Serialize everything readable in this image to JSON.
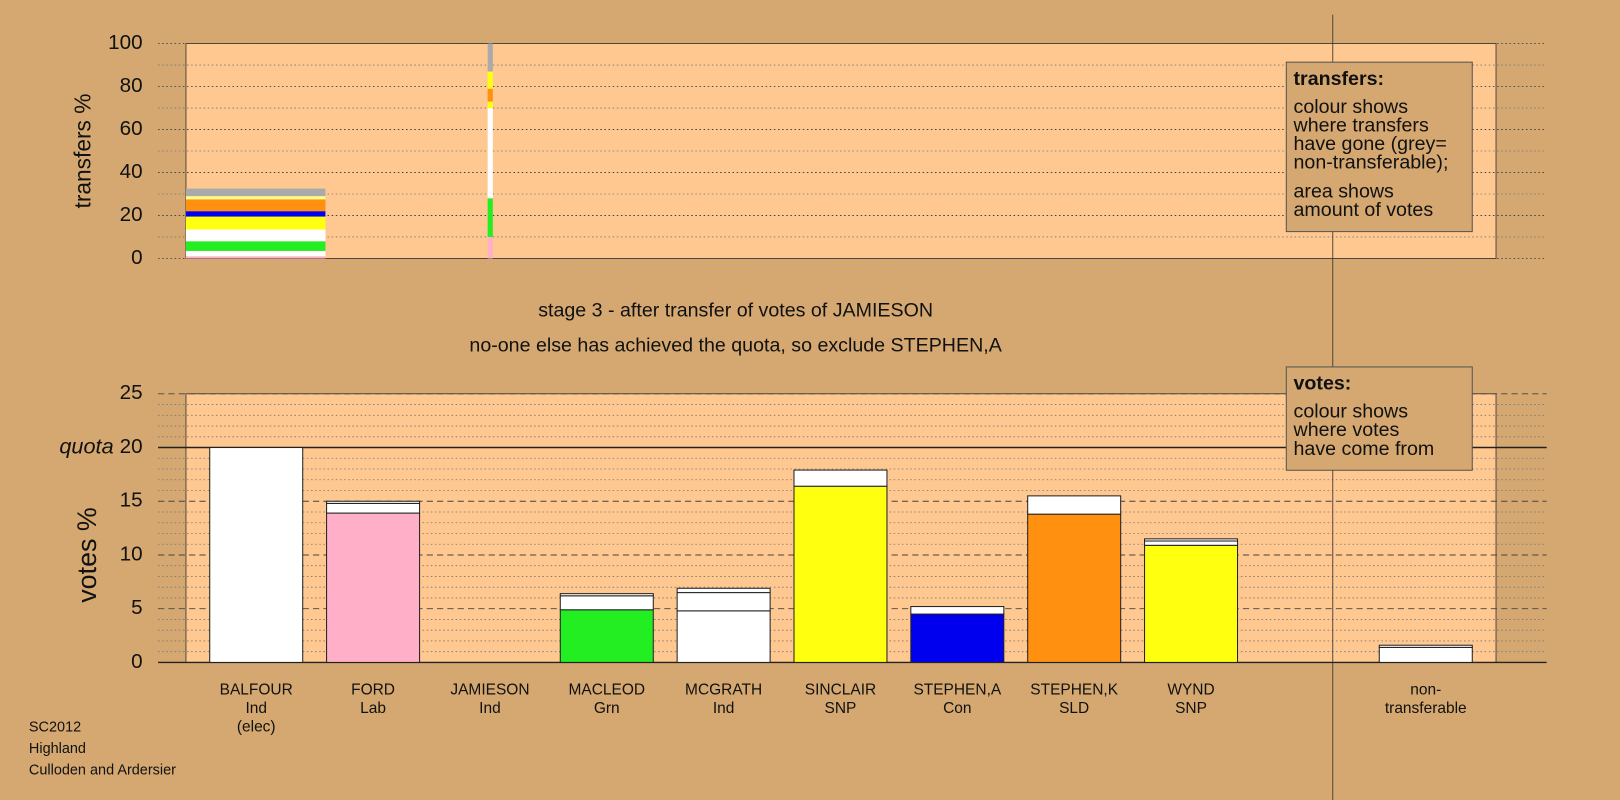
{
  "chart_data": [
    {
      "type": "stacked-bar",
      "y_label": "transfers %",
      "ylim": [
        0,
        100
      ],
      "yticks": [
        0,
        20,
        40,
        60,
        80,
        100
      ],
      "yminor": 10,
      "grid": true,
      "stacks": [
        [
          {
            "color": "#ffb0c8",
            "value": 1
          },
          {
            "color": "#ffffff",
            "value": 2.5
          },
          {
            "color": "#22ee22",
            "value": 4.5
          },
          {
            "color": "#ffffff",
            "value": 5.5
          },
          {
            "color": "#ffff10",
            "value": 6
          },
          {
            "color": "#0000ee",
            "value": 2.5
          },
          {
            "color": "#ff9010",
            "value": 5.5
          },
          {
            "color": "#ffff88",
            "value": 1.5
          },
          {
            "color": "#aaaaaa",
            "value": 3.5
          }
        ],
        [
          {
            "color": "#ffb0c8",
            "value": 10
          },
          {
            "color": "#22ee22",
            "value": 18
          },
          {
            "color": "#ffffff",
            "value": 42
          },
          {
            "color": "#ffff10",
            "value": 3
          },
          {
            "color": "#ff9010",
            "value": 6
          },
          {
            "color": "#ffff10",
            "value": 8
          },
          {
            "color": "#aaaaaa",
            "value": 13
          }
        ]
      ]
    },
    {
      "type": "stacked-bar",
      "y_label": "votes %",
      "ylim": [
        0,
        25
      ],
      "yticks": [
        0,
        5,
        10,
        15,
        20,
        25
      ],
      "yminor": 1,
      "grid": true,
      "quota": {
        "label": "quota",
        "value": 20
      },
      "categories": [
        [
          "BALFOUR",
          "Ind",
          "(elec)"
        ],
        [
          "FORD",
          "Lab"
        ],
        [
          "JAMIESON",
          "Ind"
        ],
        [
          "MACLEOD",
          "Grn"
        ],
        [
          "MCGRATH",
          "Ind"
        ],
        [
          "SINCLAIR",
          "SNP"
        ],
        [
          "STEPHEN,A",
          "Con"
        ],
        [
          "STEPHEN,K",
          "SLD"
        ],
        [
          "WYND",
          "SNP"
        ],
        [
          "non-",
          "transferable"
        ]
      ],
      "stacks": [
        [
          {
            "color": "#ffffff",
            "value": 20
          }
        ],
        [
          {
            "color": "#ffb0c8",
            "value": 13.9
          },
          {
            "color": "#ffffff",
            "value": 0.9
          },
          {
            "color": "#ffffff",
            "value": 0.2
          }
        ],
        [],
        [
          {
            "color": "#22ee22",
            "value": 4.9
          },
          {
            "color": "#ffffff",
            "value": 1.3
          },
          {
            "color": "#ffffff",
            "value": 0.2
          }
        ],
        [
          {
            "color": "#ffffff",
            "value": 4.8
          },
          {
            "color": "#ffffff",
            "value": 1.7
          },
          {
            "color": "#ffffff",
            "value": 0.4
          }
        ],
        [
          {
            "color": "#ffff10",
            "value": 16.4
          },
          {
            "color": "#ffffff",
            "value": 1.5
          }
        ],
        [
          {
            "color": "#0000ee",
            "value": 4.5
          },
          {
            "color": "#ffffff",
            "value": 0.7
          }
        ],
        [
          {
            "color": "#ff9010",
            "value": 13.8
          },
          {
            "color": "#ffffff",
            "value": 1.7
          }
        ],
        [
          {
            "color": "#ffff10",
            "value": 10.9
          },
          {
            "color": "#ffffff",
            "value": 0.4
          },
          {
            "color": "#ffffff",
            "value": 0.2
          }
        ],
        [
          {
            "color": "#ffffff",
            "value": 1.4
          },
          {
            "color": "#ffffff",
            "value": 0.2
          }
        ]
      ]
    }
  ],
  "titles": [
    "stage 3 - after transfer of votes of JAMIESON",
    "no-one else has achieved the quota, so exclude STEPHEN,A"
  ],
  "legends": [
    {
      "title": "transfers:",
      "paragraphs": [
        [
          "colour shows",
          "where transfers",
          "have gone (grey=",
          "non-transferable);"
        ],
        [
          "area shows",
          "amount of votes"
        ]
      ]
    },
    {
      "title": "votes:",
      "paragraphs": [
        [
          "colour shows",
          "where votes",
          "have come from"
        ]
      ]
    }
  ],
  "footer": [
    "SC2012",
    "Highland",
    "Culloden and Ardersier"
  ]
}
